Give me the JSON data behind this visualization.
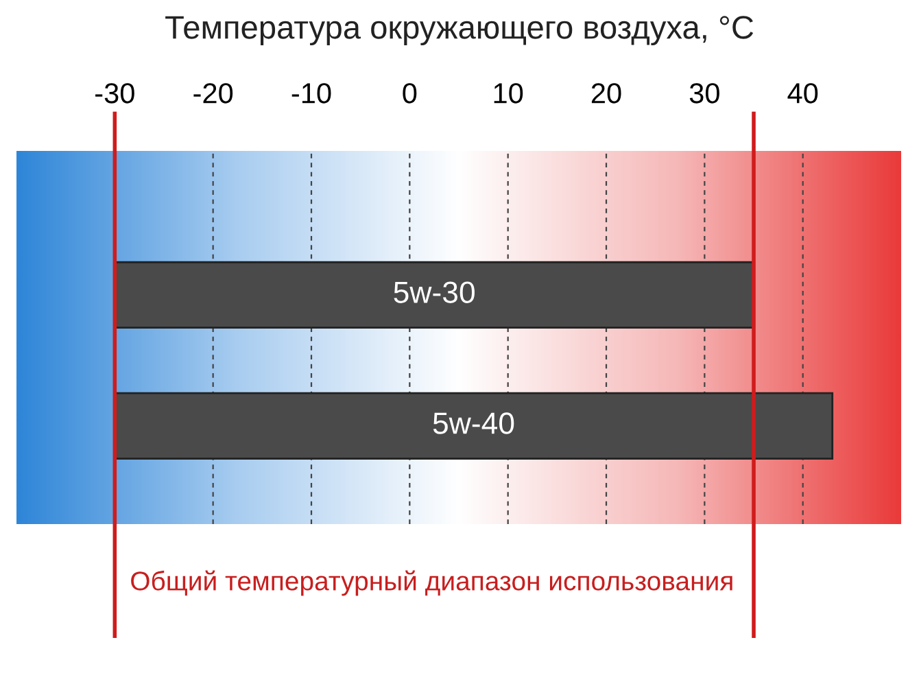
{
  "chart_data": {
    "type": "bar",
    "orientation": "horizontal",
    "title": "Температура окружающего воздуха, °C",
    "categories": [
      "5w-30",
      "5w-40"
    ],
    "values": [
      65,
      73
    ],
    "base": [
      -30,
      -30
    ],
    "color": "#4a4a4a",
    "xlim": [
      -40,
      50
    ],
    "xticks": [
      -30,
      -20,
      -10,
      0,
      10,
      20,
      30,
      40
    ],
    "grid": "x",
    "tick_labels": "x",
    "ref_lines": [
      {
        "axis": "x",
        "value": -30,
        "color": "#d01c1c"
      },
      {
        "axis": "x",
        "value": 35,
        "color": "#d01c1c"
      }
    ],
    "annotations": [
      "Общий температурный диапазон использования"
    ]
  }
}
